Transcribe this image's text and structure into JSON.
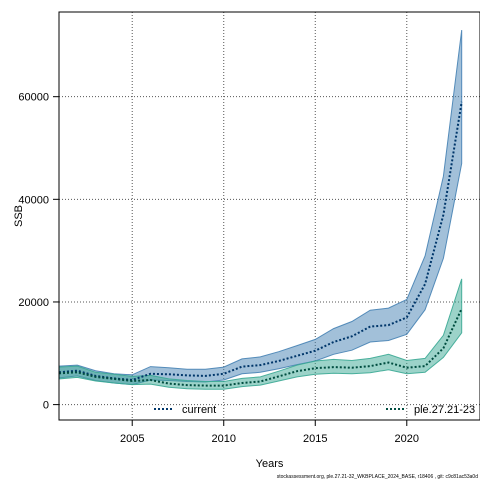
{
  "chart_data": {
    "type": "area",
    "xlabel": "Years",
    "ylabel": "SSB",
    "xlim": [
      2001,
      2024
    ],
    "ylim": [
      -3000,
      76500
    ],
    "xticks": [
      2005,
      2010,
      2015,
      2020
    ],
    "yticks": [
      0,
      20000,
      40000,
      60000
    ],
    "grid": true,
    "legend_position": "bottom",
    "years": [
      2001,
      2002,
      2003,
      2004,
      2005,
      2006,
      2007,
      2008,
      2009,
      2010,
      2011,
      2012,
      2013,
      2014,
      2015,
      2016,
      2017,
      2018,
      2019,
      2020,
      2021,
      2022,
      2023
    ],
    "series": [
      {
        "name": "current",
        "color": "#00366a",
        "band_color": "#4682b4",
        "values": [
          6300,
          6600,
          5600,
          5100,
          4800,
          6000,
          5900,
          5700,
          5600,
          6000,
          7400,
          7700,
          8500,
          9500,
          10500,
          12200,
          13300,
          15200,
          15500,
          17000,
          23500,
          37000,
          59000
        ],
        "lower": [
          5200,
          5600,
          4700,
          4200,
          3900,
          4800,
          4700,
          4500,
          4400,
          4800,
          6000,
          6300,
          7000,
          7800,
          8500,
          9800,
          10600,
          12200,
          12500,
          13700,
          18500,
          28500,
          47000
        ],
        "upper": [
          7500,
          7700,
          6600,
          6000,
          5800,
          7400,
          7200,
          6900,
          6900,
          7300,
          8900,
          9300,
          10300,
          11500,
          12700,
          14800,
          16200,
          18400,
          18800,
          20500,
          29000,
          44500,
          73000
        ]
      },
      {
        "name": "ple.27.21-23",
        "color": "#004d40",
        "band_color": "#3aa894",
        "values": [
          6100,
          6300,
          5400,
          5000,
          4600,
          4800,
          4100,
          3800,
          3700,
          3700,
          4200,
          4500,
          5500,
          6500,
          7100,
          7300,
          7200,
          7500,
          8200,
          7200,
          7500,
          11000,
          18700
        ],
        "lower": [
          5000,
          5300,
          4600,
          4200,
          3900,
          4000,
          3400,
          3100,
          3000,
          3000,
          3500,
          3800,
          4600,
          5400,
          5900,
          6100,
          6000,
          6200,
          6800,
          6000,
          6300,
          9200,
          14000
        ],
        "upper": [
          7300,
          7500,
          6300,
          5900,
          5500,
          5700,
          5000,
          4700,
          4500,
          4500,
          5100,
          5400,
          6500,
          7700,
          8500,
          8800,
          8600,
          9000,
          9800,
          8600,
          9000,
          13500,
          24500
        ]
      }
    ],
    "footnote": "stockassessment.org, ple.27.21-32_WKBPLACE_2024_BASE, r18406 , git: c9c81ac53a0d"
  }
}
